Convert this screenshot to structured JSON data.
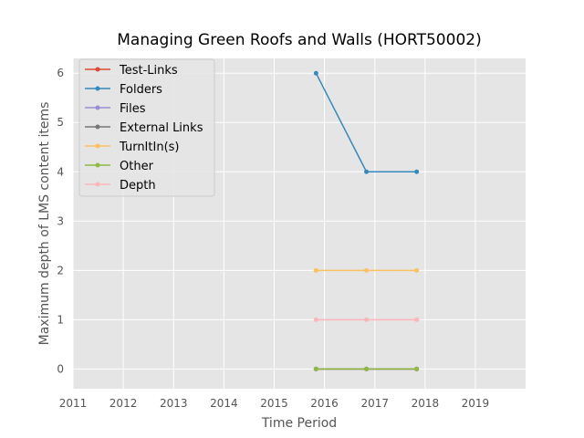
{
  "chart_data": {
    "type": "line",
    "title": "Managing Green Roofs and Walls (HORT50002)",
    "xlabel": "Time Period",
    "ylabel": "Maximum depth of LMS content items",
    "xlim": [
      "2011-01-01",
      "2020-01-01"
    ],
    "ylim": [
      -0.4,
      6.3
    ],
    "xticks": [
      "2011",
      "2012",
      "2013",
      "2014",
      "2015",
      "2016",
      "2017",
      "2018",
      "2019"
    ],
    "yticks": [
      "0",
      "1",
      "2",
      "3",
      "4",
      "5",
      "6"
    ],
    "grid": true,
    "legend_position": "top-left",
    "x": [
      "2015-11-01",
      "2016-11-01",
      "2017-11-01"
    ],
    "series": [
      {
        "name": "Test-Links",
        "color": "#E24A33",
        "values": [
          0,
          0,
          0
        ]
      },
      {
        "name": "Folders",
        "color": "#348ABD",
        "values": [
          6,
          4,
          4
        ]
      },
      {
        "name": "Files",
        "color": "#988ED5",
        "values": [
          0,
          0,
          0
        ]
      },
      {
        "name": "External Links",
        "color": "#777777",
        "values": [
          0,
          0,
          0
        ]
      },
      {
        "name": "TurnItIn(s)",
        "color": "#FBC15E",
        "values": [
          2,
          2,
          2
        ]
      },
      {
        "name": "Other",
        "color": "#8EBA42",
        "values": [
          0,
          0,
          0
        ]
      },
      {
        "name": "Depth",
        "color": "#FFB5B8",
        "values": [
          1,
          1,
          1
        ]
      }
    ]
  }
}
